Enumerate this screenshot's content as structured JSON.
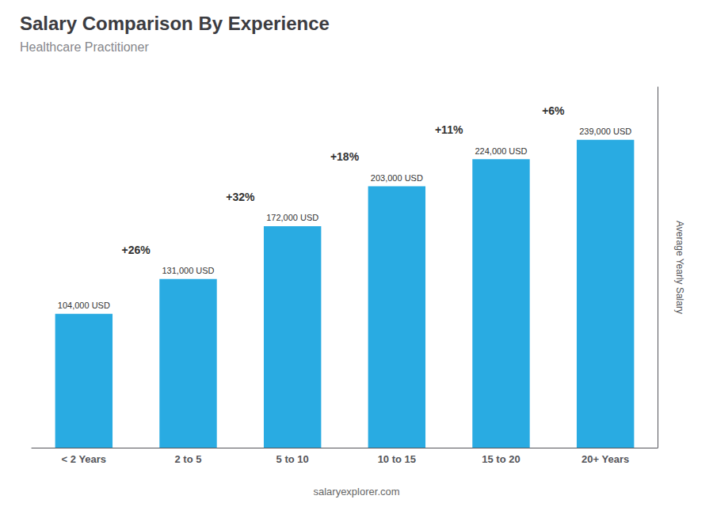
{
  "chart_data": {
    "type": "bar",
    "title": "Salary Comparison By Experience",
    "subtitle": "Healthcare Practitioner",
    "y_label": "Average Yearly Salary",
    "footer": "salaryexplorer.com",
    "categories": [
      "< 2 Years",
      "2 to 5",
      "5 to 10",
      "10 to 15",
      "15 to 20",
      "20+ Years"
    ],
    "values": [
      104000,
      131000,
      172000,
      203000,
      224000,
      239000
    ],
    "value_labels": [
      "104,000 USD",
      "131,000 USD",
      "172,000 USD",
      "203,000 USD",
      "224,000 USD",
      "239,000 USD"
    ],
    "data_labels": true,
    "annotations": [
      "+26%",
      "+32%",
      "+18%",
      "+11%",
      "+6%"
    ],
    "color": "#29ABE2",
    "ylim": [
      0,
      280000
    ],
    "tick_labels": "x",
    "grid": false
  }
}
